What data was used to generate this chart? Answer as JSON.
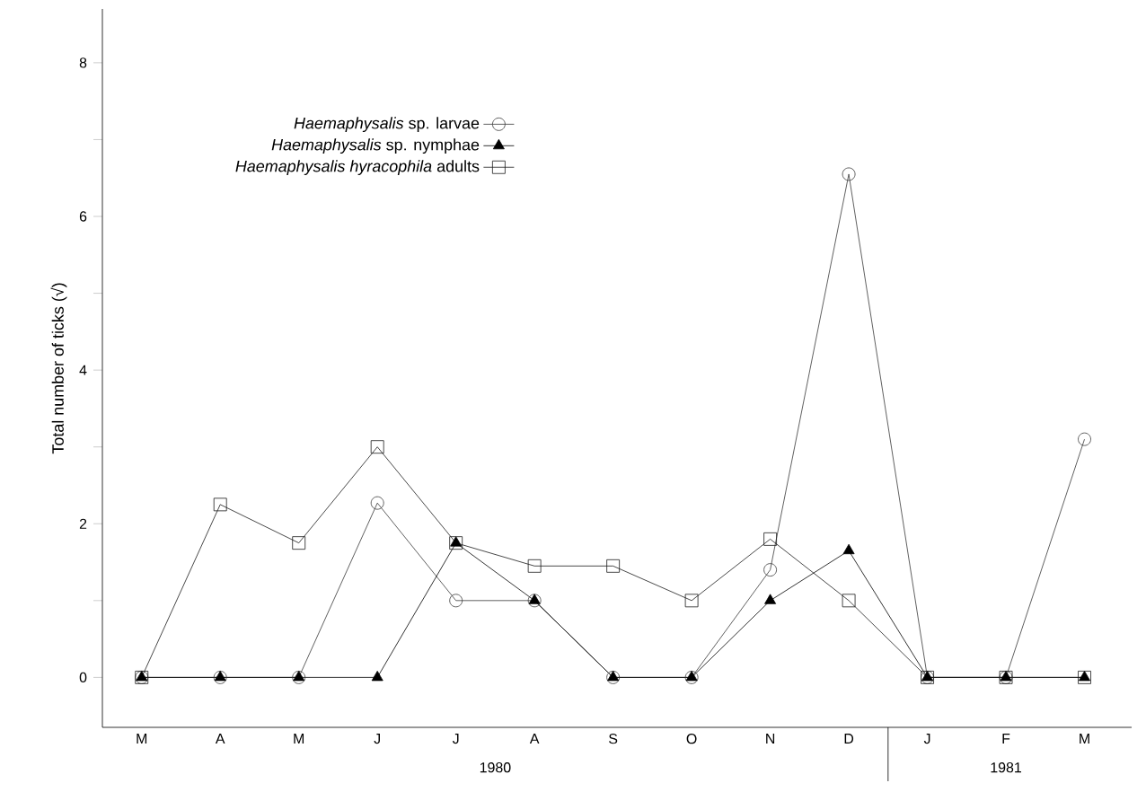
{
  "chart_data": {
    "type": "line",
    "ylabel": "Total number of ticks (√)",
    "categories": [
      "M",
      "A",
      "M",
      "J",
      "J",
      "A",
      "S",
      "O",
      "N",
      "D",
      "J",
      "F",
      "M"
    ],
    "series": [
      {
        "name": "*Haemaphysalis* sp. larvae",
        "color": "#383838",
        "marker": "circle",
        "values": [
          0,
          0,
          0,
          2.27,
          1.0,
          1.0,
          0,
          0,
          1.4,
          6.55,
          0,
          0,
          3.1
        ]
      },
      {
        "name": "*Haemaphysalis* sp. nymphae",
        "color": "#000000",
        "marker": "triangle",
        "values": [
          0,
          0,
          0,
          0,
          1.75,
          1.0,
          0,
          0,
          1.0,
          1.65,
          0,
          0,
          0
        ]
      },
      {
        "name": "*Haemaphysalis  hyracophila* adults",
        "color": "#1c1c1c",
        "marker": "square",
        "values": [
          0,
          2.25,
          1.75,
          3.0,
          1.75,
          1.45,
          1.45,
          1.0,
          1.8,
          1.0,
          0,
          0,
          0
        ]
      }
    ],
    "ylim": [
      -0.65,
      8.7
    ],
    "yticks": [
      0,
      {
        "value": 1,
        "label": null
      },
      2,
      {
        "value": 3,
        "label": null
      },
      4,
      {
        "value": 5,
        "label": null
      },
      6,
      {
        "value": 7,
        "label": null
      },
      8
    ],
    "annotations": [
      "1980",
      "1981"
    ],
    "legend": "top left",
    "grid": false,
    "line_style": "solid"
  }
}
